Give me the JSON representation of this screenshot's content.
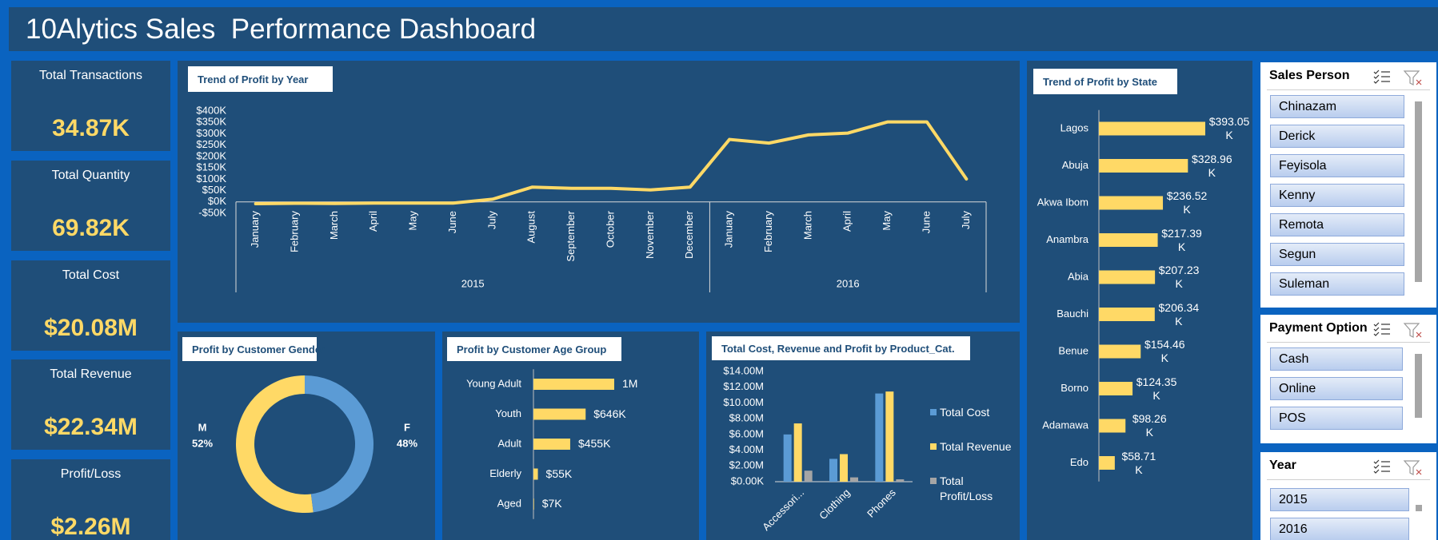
{
  "header": {
    "title": "10Alytics Sales  Performance Dashboard"
  },
  "kpis": [
    {
      "label": "Total Transactions",
      "value": "34.87K"
    },
    {
      "label": "Total Quantity",
      "value": "69.82K"
    },
    {
      "label": "Total Cost",
      "value": "$20.08M"
    },
    {
      "label": "Total Revenue",
      "value": "$22.34M"
    },
    {
      "label": "Profit/Loss",
      "value": "$2.26M"
    }
  ],
  "chart_data": [
    {
      "type": "line",
      "title": "Trend of Profit by Year",
      "groups": [
        {
          "name": "2015",
          "categories": [
            "January",
            "February",
            "March",
            "April",
            "May",
            "June",
            "July",
            "August",
            "September",
            "October",
            "November",
            "December"
          ]
        },
        {
          "name": "2016",
          "categories": [
            "January",
            "February",
            "March",
            "April",
            "May",
            "June",
            "July"
          ]
        }
      ],
      "values": [
        -8000,
        -6000,
        -7000,
        -5000,
        -5000,
        -5000,
        12000,
        65000,
        60000,
        60000,
        53000,
        65000,
        275000,
        259000,
        295000,
        303000,
        352000,
        352000,
        101000
      ],
      "color": "#ffd966",
      "ylim": [
        -50000,
        400000
      ],
      "yticks": [
        {
          "value": -50000,
          "label": "-$50K"
        },
        {
          "value": 0,
          "label": "$0K"
        },
        {
          "value": 50000,
          "label": "$50K"
        },
        {
          "value": 100000,
          "label": "$100K"
        },
        {
          "value": 150000,
          "label": "$150K"
        },
        {
          "value": 200000,
          "label": "$200K"
        },
        {
          "value": 250000,
          "label": "$250K"
        },
        {
          "value": 300000,
          "label": "$300K"
        },
        {
          "value": 350000,
          "label": "$350K"
        },
        {
          "value": 400000,
          "label": "$400K"
        }
      ]
    },
    {
      "type": "donut",
      "title": "Profit by Customer Gender",
      "categories": [
        "M",
        "F"
      ],
      "values": [
        52,
        48
      ],
      "value_labels": [
        "52%",
        "48%"
      ],
      "colors": [
        "#ffd966",
        "#5b9bd5"
      ]
    },
    {
      "type": "bar",
      "orientation": "horizontal",
      "title": "Profit by Customer Age Group",
      "categories": [
        "Young Adult",
        "Youth",
        "Adult",
        "Elderly",
        "Aged"
      ],
      "values": [
        1000000,
        646000,
        455000,
        55000,
        7000
      ],
      "value_labels": [
        "1M",
        "$646K",
        "$455K",
        "$55K",
        "$7K"
      ],
      "color": "#ffd966"
    },
    {
      "type": "bar",
      "orientation": "vertical",
      "title": "Total Cost, Revenue and Profit by Product_Cat.",
      "categories": [
        "Accessori...",
        "Clothing",
        "Phones"
      ],
      "series": [
        {
          "name": "Total Cost",
          "color": "#5b9bd5",
          "values": [
            6000000,
            2900000,
            11200000
          ]
        },
        {
          "name": "Total Revenue",
          "color": "#ffd966",
          "values": [
            7400000,
            3500000,
            11450000
          ]
        },
        {
          "name": "Total Profit/Loss",
          "color": "#a5a5a5",
          "values": [
            1400000,
            550000,
            300000
          ]
        }
      ],
      "ylim": [
        0,
        14000000
      ],
      "yticks": [
        {
          "value": 0,
          "label": "$0.00K"
        },
        {
          "value": 2000000,
          "label": "$2.00M"
        },
        {
          "value": 4000000,
          "label": "$4.00M"
        },
        {
          "value": 6000000,
          "label": "$6.00M"
        },
        {
          "value": 8000000,
          "label": "$8.00M"
        },
        {
          "value": 10000000,
          "label": "$10.00M"
        },
        {
          "value": 12000000,
          "label": "$12.00M"
        },
        {
          "value": 14000000,
          "label": "$14.00M"
        }
      ],
      "legend": "right"
    },
    {
      "type": "bar",
      "orientation": "horizontal",
      "title": "Trend of Profit by State",
      "categories": [
        "Lagos",
        "Abuja",
        "Akwa Ibom",
        "Anambra",
        "Abia",
        "Bauchi",
        "Benue",
        "Borno",
        "Adamawa",
        "Edo"
      ],
      "values": [
        393050,
        328960,
        236520,
        217390,
        207230,
        206340,
        154460,
        124350,
        98260,
        58710
      ],
      "value_labels": [
        "$393.05K",
        "$328.96K",
        "$236.52K",
        "$217.39K",
        "$207.23K",
        "$206.34K",
        "$154.46K",
        "$124.35K",
        "$98.26K",
        "$58.71K"
      ],
      "color": "#ffd966"
    }
  ],
  "slicers": [
    {
      "title": "Sales Person",
      "items": [
        "Chinazam",
        "Derick",
        "Feyisola",
        "Kenny",
        "Remota",
        "Segun",
        "Suleman"
      ]
    },
    {
      "title": "Payment Option",
      "items": [
        "Cash",
        "Online",
        "POS"
      ]
    },
    {
      "title": "Year",
      "items": [
        "2015",
        "2016"
      ]
    }
  ]
}
